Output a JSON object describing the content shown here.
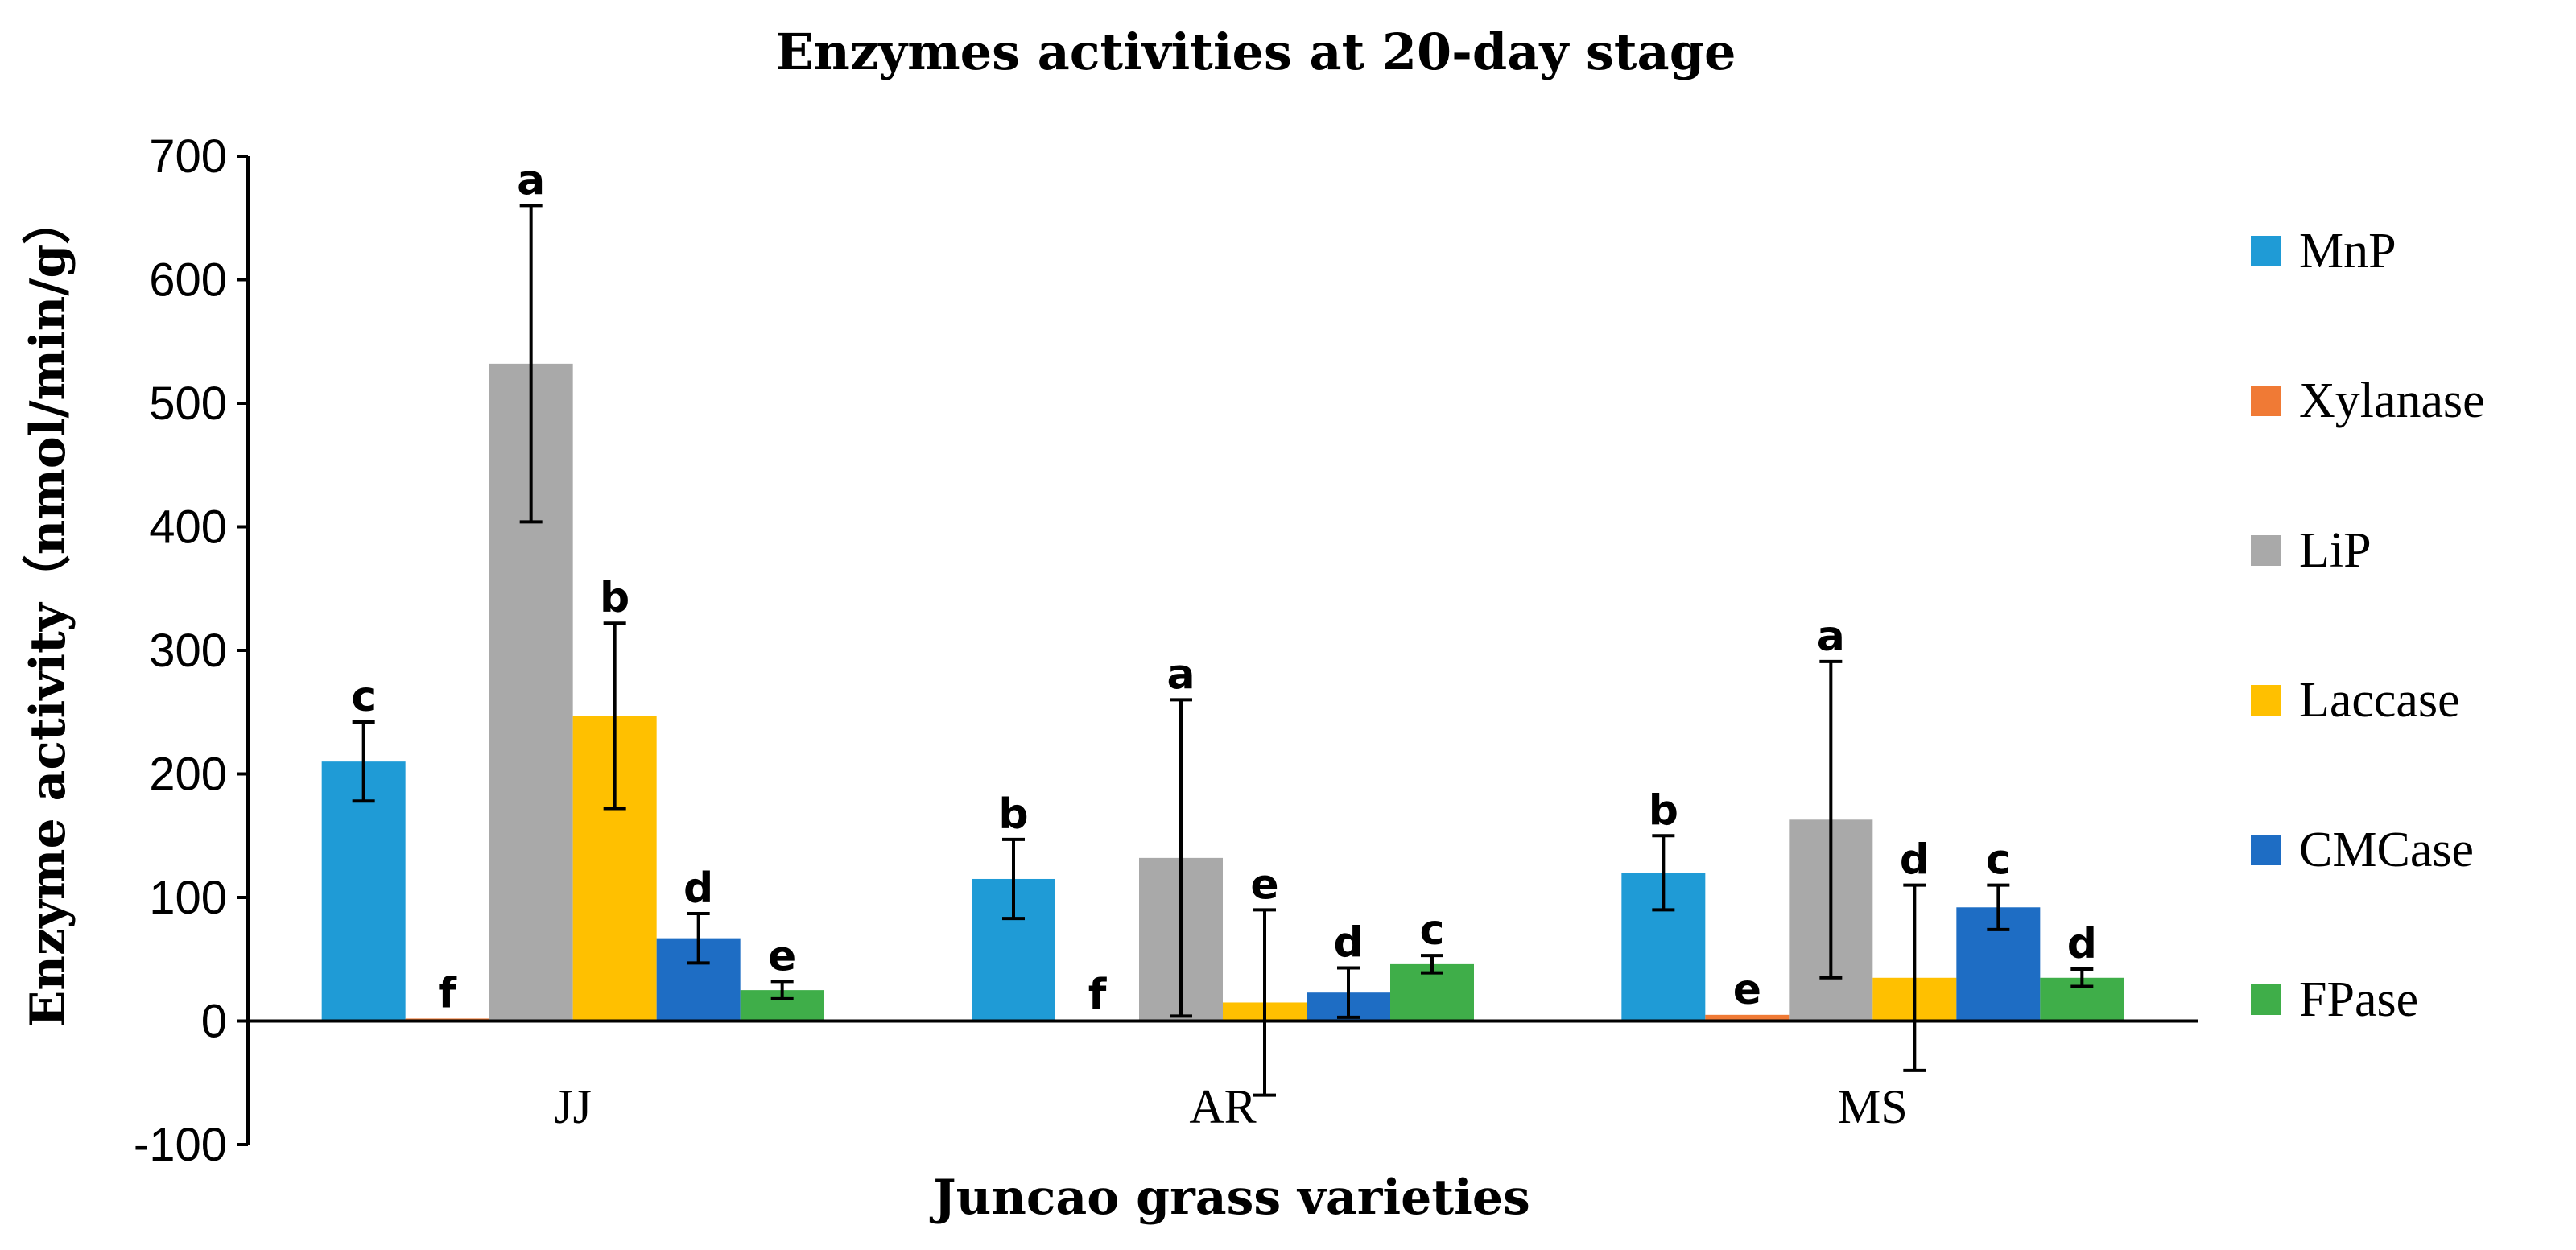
{
  "chart_data": {
    "type": "bar",
    "title": "Enzymes activities at 20-day stage",
    "xlabel": "Juncao grass varieties",
    "ylabel": "Enzyme activity（nmol/min/g）",
    "ylim": [
      -100,
      700
    ],
    "yticks": [
      -100,
      0,
      100,
      200,
      300,
      400,
      500,
      600,
      700
    ],
    "ytick_labels": [
      "-100",
      "0",
      "100",
      "200",
      "300",
      "400",
      "500",
      "600",
      "700"
    ],
    "categories": [
      "JJ",
      "AR",
      "MS"
    ],
    "grid": false,
    "legend_position": "right",
    "series": [
      {
        "name": "MnP",
        "color": "#1f9bd6",
        "values": [
          210,
          115,
          120
        ],
        "errors": [
          32,
          32,
          30
        ],
        "letters": [
          "c",
          "b",
          "b"
        ]
      },
      {
        "name": "Xylanase",
        "color": "#f07a35",
        "values": [
          2,
          1,
          5
        ],
        "errors": [
          0,
          0,
          0
        ],
        "letters": [
          "f",
          "f",
          "e"
        ]
      },
      {
        "name": "LiP",
        "color": "#a9a9a9",
        "values": [
          532,
          132,
          163
        ],
        "errors": [
          128,
          128,
          128
        ],
        "letters": [
          "a",
          "a",
          "a"
        ]
      },
      {
        "name": "Laccase",
        "color": "#ffc000",
        "values": [
          247,
          15,
          35
        ],
        "errors": [
          75,
          75,
          75
        ],
        "letters": [
          "b",
          "e",
          "d"
        ]
      },
      {
        "name": "CMCase",
        "color": "#1e6dc4",
        "values": [
          67,
          23,
          92
        ],
        "errors": [
          20,
          20,
          18
        ],
        "letters": [
          "d",
          "d",
          "c"
        ]
      },
      {
        "name": "FPase",
        "color": "#3fae49",
        "values": [
          25,
          46,
          35
        ],
        "errors": [
          7,
          7,
          7
        ],
        "letters": [
          "e",
          "c",
          "d"
        ]
      }
    ]
  }
}
